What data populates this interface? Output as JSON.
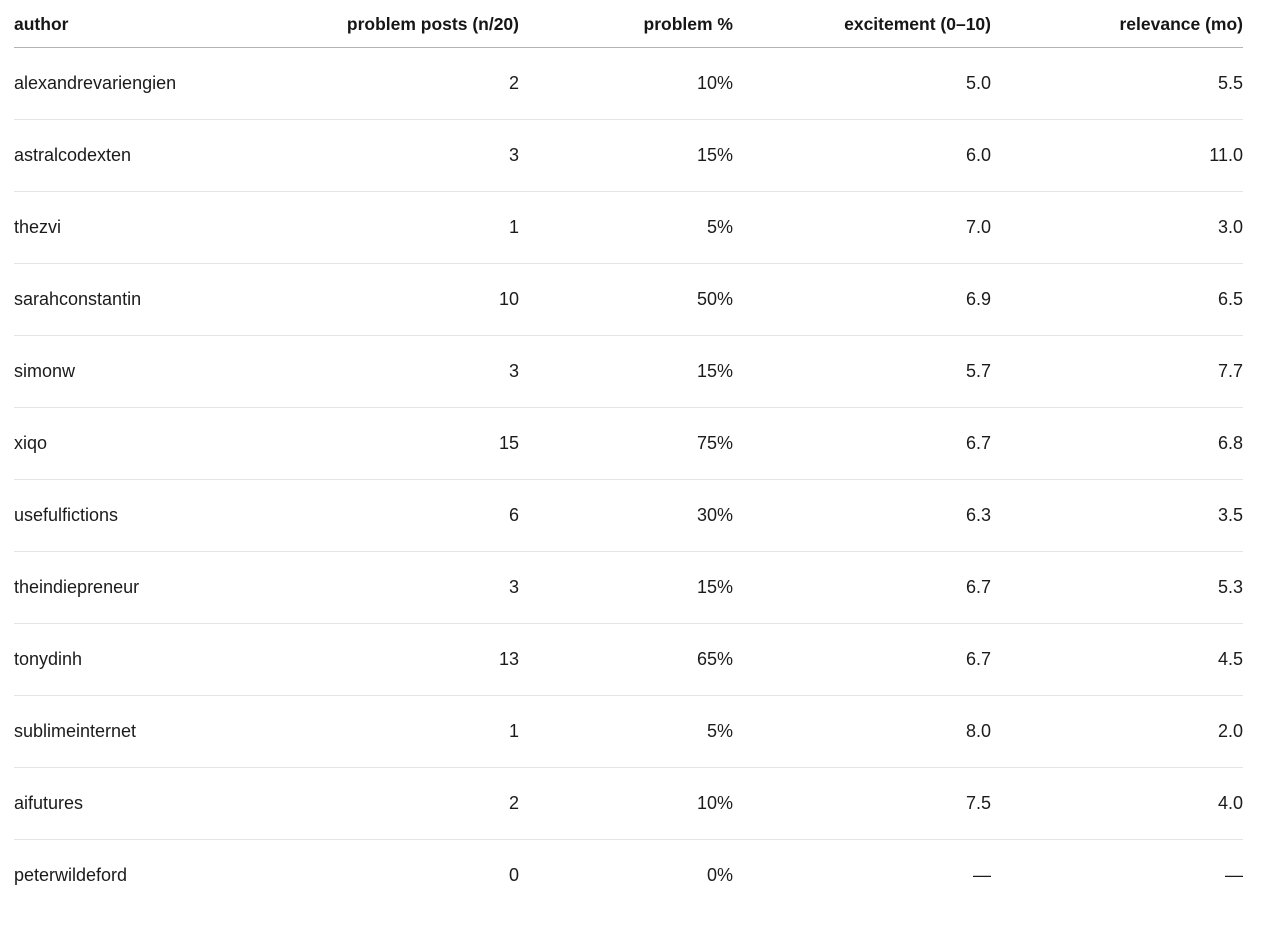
{
  "chart_data": {
    "type": "table",
    "columns": [
      {
        "key": "author",
        "label": "author"
      },
      {
        "key": "posts",
        "label": "problem posts (n/20)"
      },
      {
        "key": "percent",
        "label": "problem %"
      },
      {
        "key": "excitement",
        "label": "excitement (0–10)"
      },
      {
        "key": "relevance",
        "label": "relevance (mo)"
      }
    ],
    "rows": [
      {
        "author": "alexandrevariengien",
        "posts": "2",
        "percent": "10%",
        "excitement": "5.0",
        "relevance": "5.5"
      },
      {
        "author": "astralcodexten",
        "posts": "3",
        "percent": "15%",
        "excitement": "6.0",
        "relevance": "11.0"
      },
      {
        "author": "thezvi",
        "posts": "1",
        "percent": "5%",
        "excitement": "7.0",
        "relevance": "3.0"
      },
      {
        "author": "sarahconstantin",
        "posts": "10",
        "percent": "50%",
        "excitement": "6.9",
        "relevance": "6.5"
      },
      {
        "author": "simonw",
        "posts": "3",
        "percent": "15%",
        "excitement": "5.7",
        "relevance": "7.7"
      },
      {
        "author": "xiqo",
        "posts": "15",
        "percent": "75%",
        "excitement": "6.7",
        "relevance": "6.8"
      },
      {
        "author": "usefulfictions",
        "posts": "6",
        "percent": "30%",
        "excitement": "6.3",
        "relevance": "3.5"
      },
      {
        "author": "theindiepreneur",
        "posts": "3",
        "percent": "15%",
        "excitement": "6.7",
        "relevance": "5.3"
      },
      {
        "author": "tonydinh",
        "posts": "13",
        "percent": "65%",
        "excitement": "6.7",
        "relevance": "4.5"
      },
      {
        "author": "sublimeinternet",
        "posts": "1",
        "percent": "5%",
        "excitement": "8.0",
        "relevance": "2.0"
      },
      {
        "author": "aifutures",
        "posts": "2",
        "percent": "10%",
        "excitement": "7.5",
        "relevance": "4.0"
      },
      {
        "author": "peterwildeford",
        "posts": "0",
        "percent": "0%",
        "excitement": "—",
        "relevance": "—"
      }
    ],
    "missing_value_placeholder": "—",
    "layout_hints": {
      "first_column_align": "left",
      "numeric_columns_align": "right",
      "grid": "horizontal-rules-only"
    }
  },
  "colors": {
    "background": "#ffffff",
    "text": "#1b1b1b",
    "header_text": "#161616",
    "header_rule": "#b3b3b3",
    "row_rule": "#e5e5e5"
  }
}
